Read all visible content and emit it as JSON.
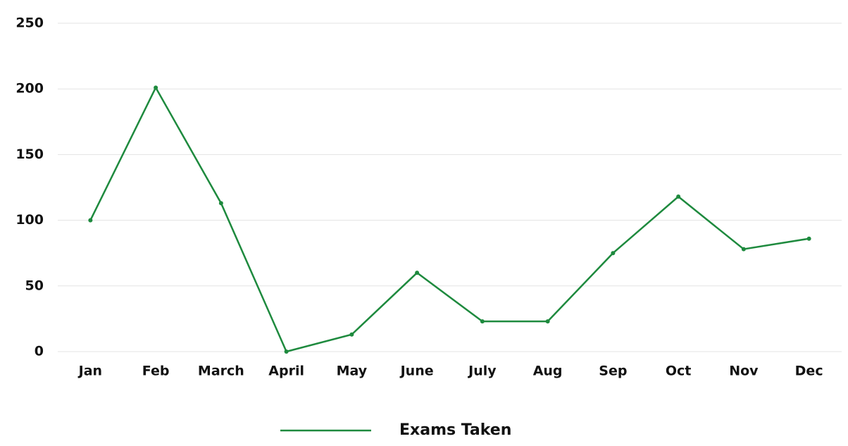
{
  "chart_data": {
    "type": "line",
    "categories": [
      "Jan",
      "Feb",
      "March",
      "April",
      "May",
      "June",
      "July",
      "Aug",
      "Sep",
      "Oct",
      "Nov",
      "Dec"
    ],
    "series": [
      {
        "name": "Exams Taken",
        "color": "#1e8a3e",
        "values": [
          100,
          201,
          113,
          0,
          13,
          60,
          23,
          23,
          75,
          118,
          78,
          86
        ]
      }
    ],
    "ylim": [
      0,
      250
    ],
    "yticks": [
      0,
      50,
      100,
      150,
      200,
      250
    ],
    "grid": true,
    "legend": "bottom"
  }
}
